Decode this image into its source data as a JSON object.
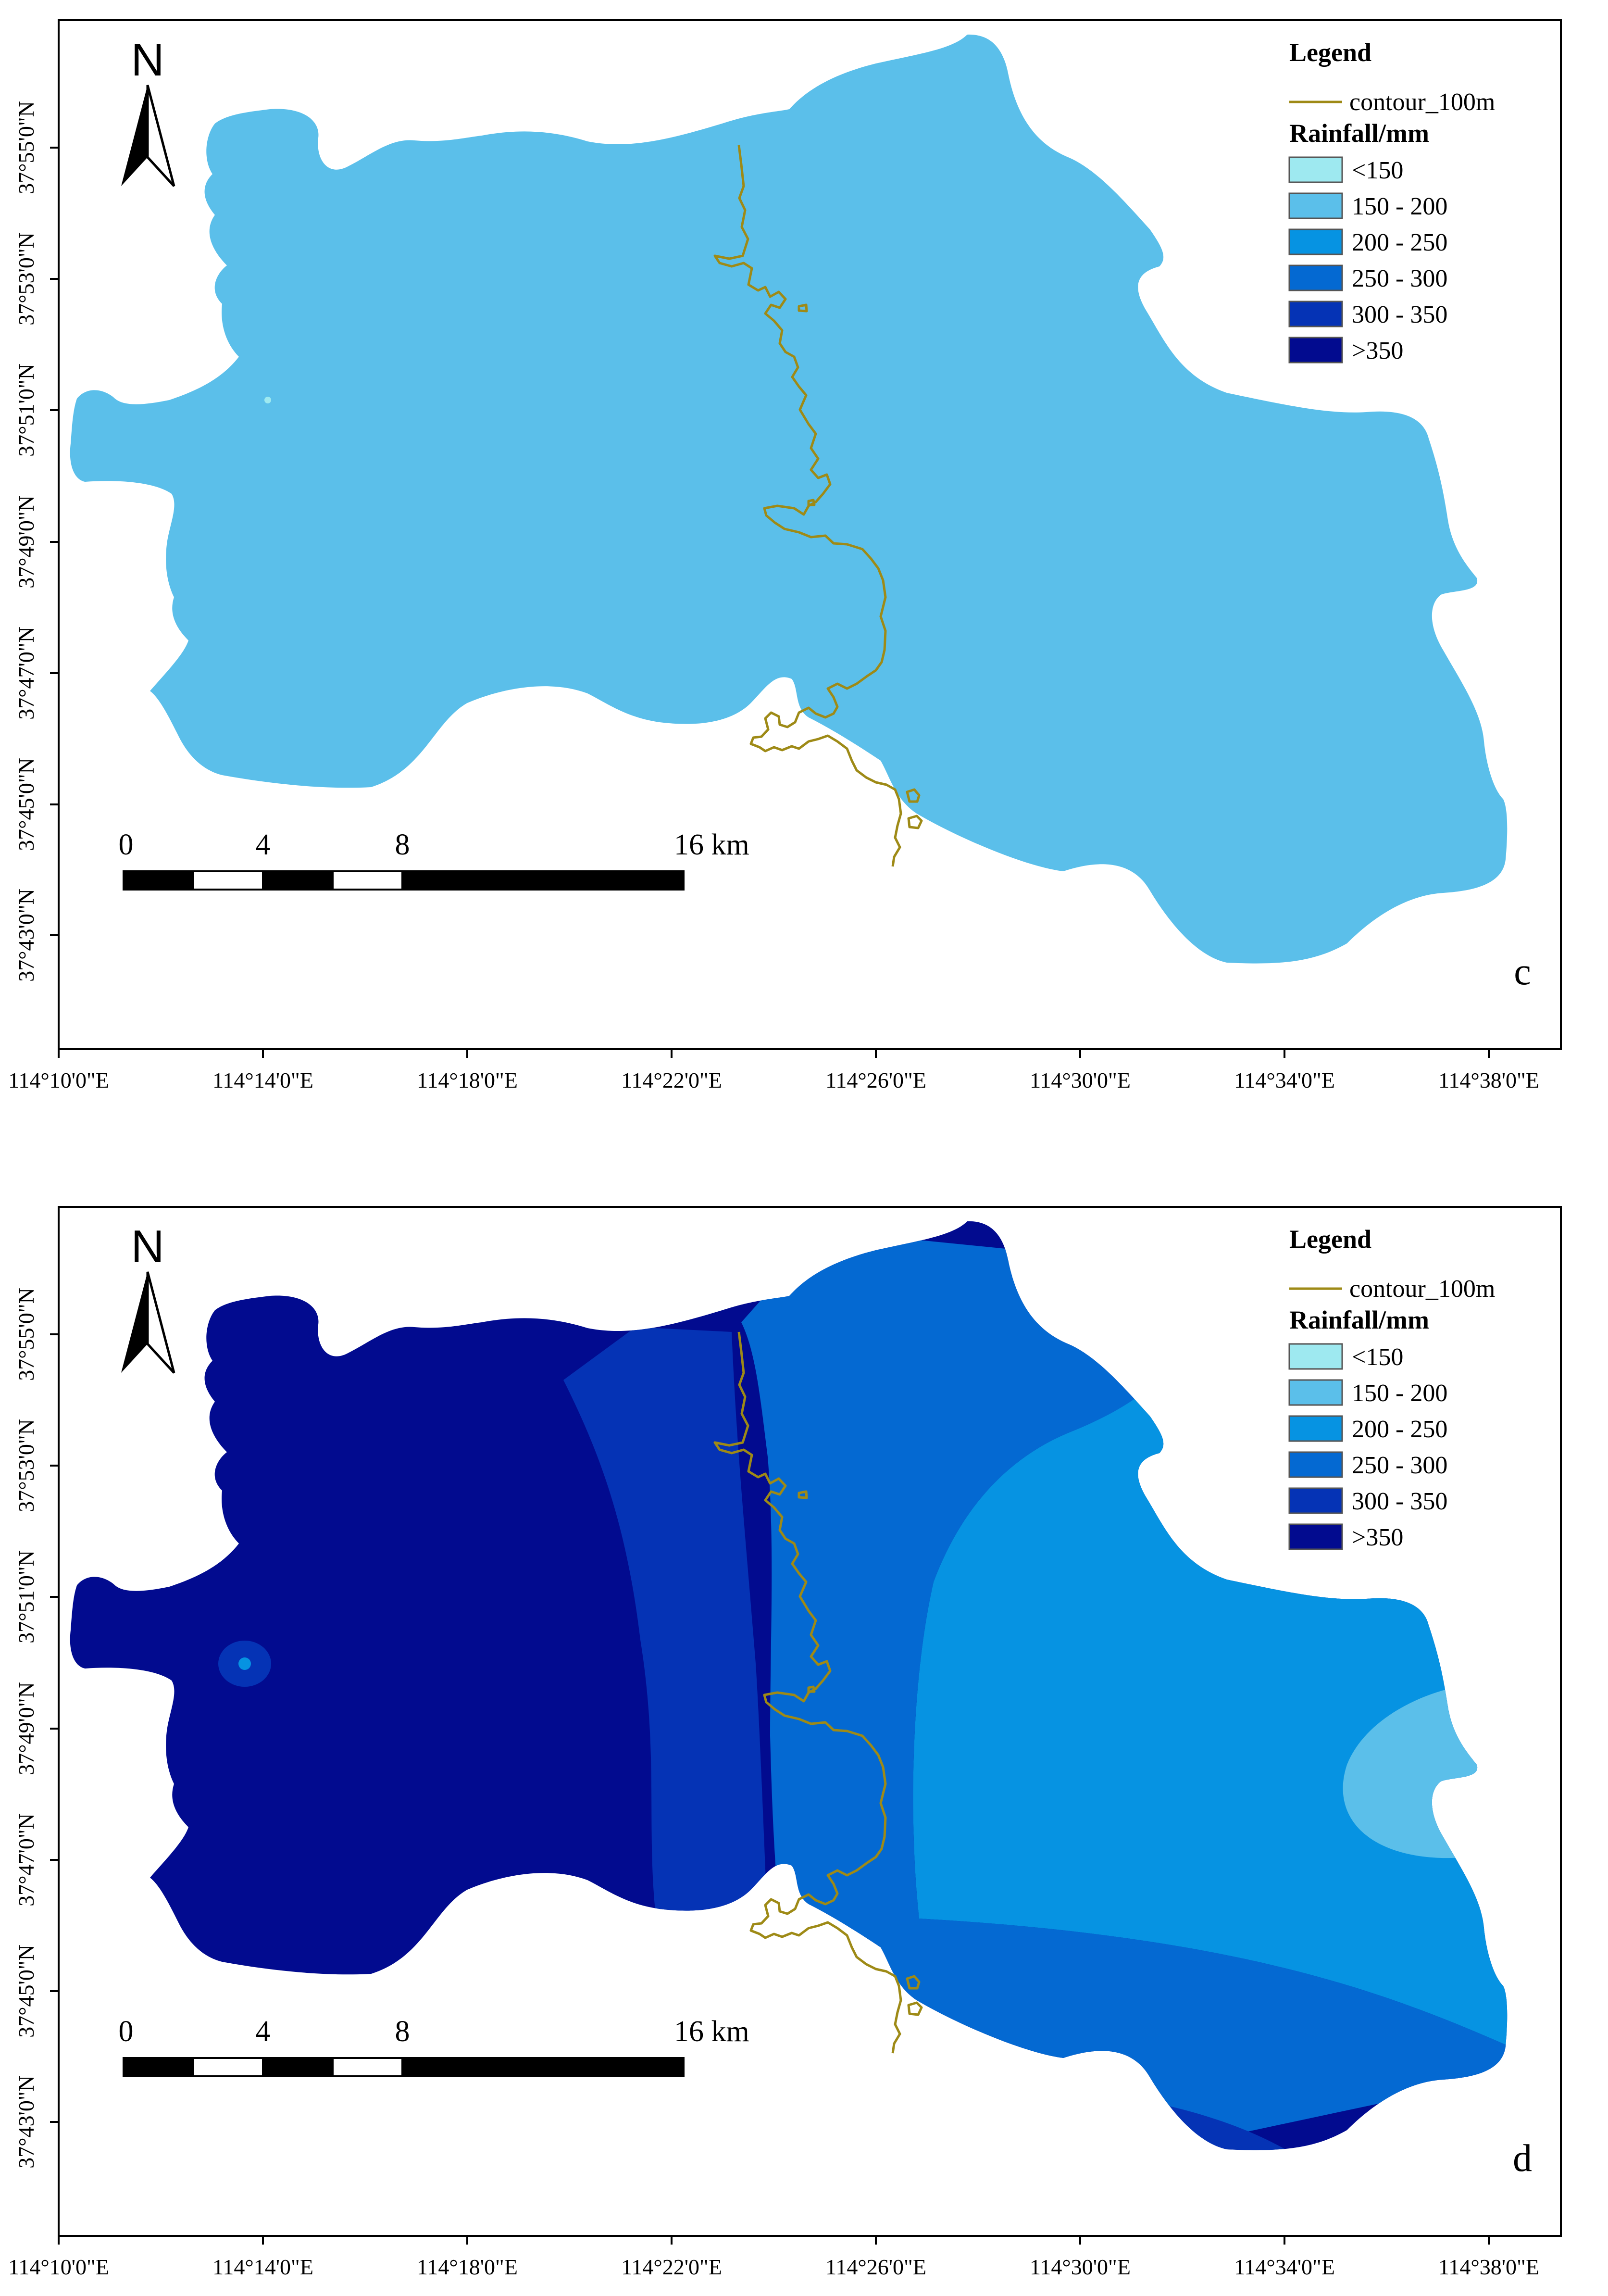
{
  "panels": [
    {
      "id": "c",
      "label": "c",
      "lat_labels": [
        "37°55'0\"N",
        "37°53'0\"N",
        "37°51'0\"N",
        "37°49'0\"N",
        "37°47'0\"N",
        "37°45'0\"N",
        "37°43'0\"N"
      ],
      "lon_labels": [
        "114°10'0\"E",
        "114°14'0\"E",
        "114°18'0\"E",
        "114°22'0\"E",
        "114°26'0\"E",
        "114°30'0\"E",
        "114°34'0\"E",
        "114°38'0\"E"
      ],
      "rainfall_zones": [
        {
          "class": "150 - 200",
          "color": "#5bbfea"
        },
        {
          "class": "<150",
          "color": "#9ee9f0"
        }
      ]
    },
    {
      "id": "d",
      "label": "d",
      "lat_labels": [
        "37°55'0\"N",
        "37°53'0\"N",
        "37°51'0\"N",
        "37°49'0\"N",
        "37°47'0\"N",
        "37°45'0\"N",
        "37°43'0\"N"
      ],
      "lon_labels": [
        "114°10'0\"E",
        "114°14'0\"E",
        "114°18'0\"E",
        "114°22'0\"E",
        "114°26'0\"E",
        "114°30'0\"E",
        "114°34'0\"E",
        "114°38'0\"E"
      ],
      "rainfall_zones": [
        {
          "class": ">350",
          "color": "#020b8f"
        },
        {
          "class": "300 - 350",
          "color": "#0533b5"
        },
        {
          "class": "250 - 300",
          "color": "#0469d2"
        },
        {
          "class": "200 - 250",
          "color": "#0693e2"
        },
        {
          "class": "150 - 200",
          "color": "#5bbfea"
        }
      ]
    }
  ],
  "legend": {
    "title": "Legend",
    "contour_label": "contour_100m",
    "contour_color": "#9e8a16",
    "rainfall_title": "Rainfall/mm",
    "classes": [
      {
        "label": "<150",
        "color": "#9ee9f0"
      },
      {
        "label": "150 - 200",
        "color": "#5bbfea"
      },
      {
        "label": "200 - 250",
        "color": "#0693e2"
      },
      {
        "label": "250 - 300",
        "color": "#0469d2"
      },
      {
        "label": "300 - 350",
        "color": "#0533b5"
      },
      {
        "label": ">350",
        "color": "#020b8f"
      }
    ]
  },
  "scale_bar": {
    "labels": [
      "0",
      "4",
      "8",
      "16 km"
    ]
  },
  "north_arrow": {
    "label": "N",
    "icon": "north-arrow-icon"
  }
}
